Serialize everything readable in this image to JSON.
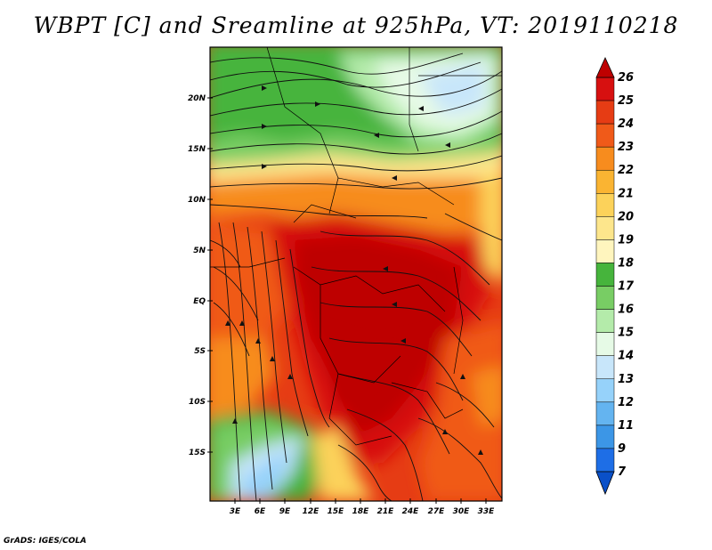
{
  "title": "WBPT [C] and Sreamline at 925hPa, VT: 2019110218",
  "footer": "GrADS: IGES/COLA",
  "map": {
    "lat_labels": [
      "20N",
      "15N",
      "10N",
      "5N",
      "EQ",
      "5S",
      "10S",
      "15S"
    ],
    "lon_labels": [
      "3E",
      "6E",
      "9E",
      "12E",
      "15E",
      "18E",
      "21E",
      "24E",
      "27E",
      "30E",
      "33E"
    ]
  },
  "colorbar": {
    "labels": [
      "26",
      "25",
      "24",
      "23",
      "22",
      "21",
      "20",
      "19",
      "18",
      "17",
      "16",
      "15",
      "14",
      "13",
      "12",
      "11",
      "9",
      "7"
    ],
    "colors": [
      "#be0000",
      "#d71010",
      "#e63c14",
      "#f05a19",
      "#f78c1e",
      "#fab432",
      "#fcd25a",
      "#fde68c",
      "#fff5be",
      "#46b43c",
      "#78cd64",
      "#b4ebaa",
      "#e6fae6",
      "#c8e6fa",
      "#96d2fa",
      "#64b4f0",
      "#3c96e6",
      "#1e6ee6",
      "#0a50c8"
    ]
  }
}
